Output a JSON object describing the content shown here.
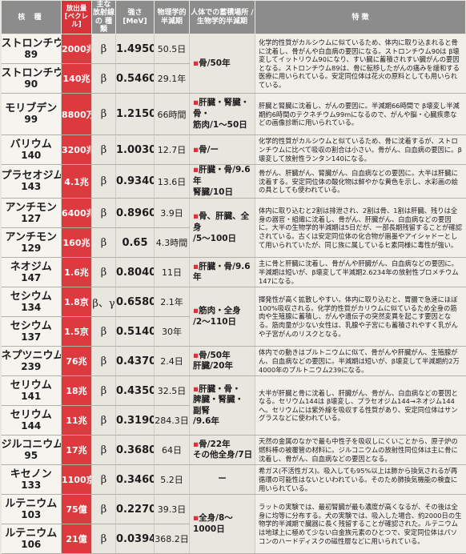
{
  "headers": {
    "nuclide": "核 種",
    "release": "放出量 [ベクレル]",
    "radiation": "主な 放射線の 種類",
    "energy": "強さ [MeV]",
    "half_life": "物理学的 半減期",
    "organ": "人体での蓄積場所 /生物学的半減期",
    "features": "特 徴"
  },
  "rows": [
    {
      "name": "ストロンチウム",
      "mass": "89",
      "release": "2000兆",
      "radiation": "β",
      "energy": "1.4950",
      "half_life": "50.5日"
    },
    {
      "name": "ストロンチウム",
      "mass": "90",
      "release": "140兆",
      "radiation": "β",
      "energy": "0.5460",
      "half_life": "29.1年"
    },
    {
      "name": "モリブデン",
      "mass": "99",
      "release": "8800万",
      "radiation": "β",
      "energy": "1.2150",
      "half_life": "66時間"
    },
    {
      "name": "バリウム",
      "mass": "140",
      "release": "3200兆",
      "radiation": "β",
      "energy": "1.0030",
      "half_life": "12.7日"
    },
    {
      "name": "プラセオジム",
      "mass": "143",
      "release": "4.1兆",
      "radiation": "β",
      "energy": "0.9340",
      "half_life": "13.6日"
    },
    {
      "name": "アンチモン",
      "mass": "127",
      "release": "6400兆",
      "radiation": "β",
      "energy": "0.8960",
      "half_life": "3.9日"
    },
    {
      "name": "アンチモン",
      "mass": "129",
      "release": "160兆",
      "radiation": "β",
      "energy": "0.65",
      "half_life": "4.3時間"
    },
    {
      "name": "ネオジム",
      "mass": "147",
      "release": "1.6兆",
      "radiation": "β",
      "energy": "0.8040",
      "half_life": "11日"
    },
    {
      "name": "セシウム",
      "mass": "134",
      "release": "1.8京",
      "radiation": "β、γ",
      "energy": "0.6580",
      "half_life": "2.1年"
    },
    {
      "name": "セシウム",
      "mass": "137",
      "release": "1.5京",
      "radiation": "β",
      "energy": "0.5140",
      "half_life": "30年"
    },
    {
      "name": "ネプツニウム",
      "mass": "239",
      "release": "76兆",
      "radiation": "β",
      "energy": "0.4370",
      "half_life": "2.4日"
    },
    {
      "name": "セリウム",
      "mass": "141",
      "release": "18兆",
      "radiation": "β",
      "energy": "0.4350",
      "half_life": "32.5日"
    },
    {
      "name": "セリウム",
      "mass": "144",
      "release": "11兆",
      "radiation": "β",
      "energy": "0.3190",
      "half_life": "284.3日"
    },
    {
      "name": "ジルコニウム",
      "mass": "95",
      "release": "17兆",
      "radiation": "β",
      "energy": "0.3680",
      "half_life": "64日"
    },
    {
      "name": "キセノン",
      "mass": "133",
      "release": "1100京",
      "radiation": "β",
      "energy": "0.3460",
      "half_life": "5.2日"
    },
    {
      "name": "ルテニウム",
      "mass": "103",
      "release": "75億",
      "radiation": "β",
      "energy": "0.2270",
      "half_life": "39.3日"
    },
    {
      "name": "ルテニウム",
      "mass": "106",
      "release": "21億",
      "radiation": "β",
      "energy": "0.0394",
      "half_life": "368.2日"
    }
  ],
  "groups": [
    {
      "organ": [
        "骨/50年"
      ],
      "features": "化学的性質がカルシウムに似ているため、体内に取り込まれると骨に沈着し、骨がんや白血病の要因になる。ストロンチウム90は β壊変してイットリウム90になり、すい臓に蓄積されすい臓がんの要因となる。ストロンチウム89は、骨に転移したがんの痛みを緩和する医療に用いられている。安定同位体は花火の原料としても用いられている。"
    },
    {
      "organ": [
        "肝臓・腎臓・骨・",
        "筋肉/1〜50日"
      ],
      "features": "肝臓と腎臓に沈着し、がんの要因に。半減期66時間で β壊変し半減期約6時間のテクネチウム99mになるので、がんや脳・心臓疾患などの画像診断に用いられている。"
    },
    {
      "organ": [
        "骨/ー"
      ],
      "features": "化学的性質がカルシウムと似ているため、骨に沈着するが、ストロンチウムに比べて吸収の割合は小さい。骨がん、白血病の要因に。β壊変して放射性ランタン140になる。"
    },
    {
      "organ": [
        "肝臓・骨/9.6年",
        "腎臓/10日"
      ],
      "features": "骨がん、肝臓がん、腎臓がん、白血病などの要因に。大半は肝臓に沈着する。安定同位体の酸化物は鮮やかな黄色を示し、水彩画の絵の具としても使われている。"
    },
    {
      "organ": [
        "骨、肝臓、全身",
        "/5〜100日"
      ],
      "features": "体内に取り込むと2割は排泄され、2割は骨、1割は肝臓、残りは全身の器官・組織に沈着し、骨がん、肝臓がん、白血病などの要因に。大半の生物学的半減期は5日だが、一部長期残留することが確認されている。古くは安定同位体の化合物が眉墨やアイシャドーとして用いられていたが、同じ族に属しているヒ素同様に毒性が強い。"
    },
    {
      "organ": [
        "肝臓・骨/9.6年"
      ],
      "features": "主に骨と肝臓に沈着し、骨がんや肝臓がん、白血病などの要因に。半減期は短いが、β壊変して半減期2.6234年の放射性プロメチウム147になる。"
    },
    {
      "organ": [
        "筋肉・全身",
        "/2〜110日"
      ],
      "features": "揮発性が高く拡散しやすい。体内に取り込むと、胃腸で急速にほぼ100%吸収される。化学的性質がカリウムに似ているため全身の筋肉や生殖腺に蓄積し、がんや遺伝子の突然変異を起こす要因となる。筋肉量が少ない女性は、乳腺や子宮にも蓄積されやすく乳がんや子宮がんのリスクとなる。"
    },
    {
      "organ": [
        "骨/50年",
        "肝臓/20年"
      ],
      "features": "体内での動きはプルトニウムに似て、骨がんや肝臓がん、生殖腺がん、白血病などの要因に。半減期は短いが、β壊変して半減期約2万4000年のプルトニウム239になる。"
    },
    {
      "organ": [
        "肝臓・骨・",
        "脾臓・腎臓・",
        "副腎",
        "/9.6年"
      ],
      "features": "大半が肝臓と骨に沈着し、肝臓がん、骨がん、白血病などの要因となる。セリウム144は β壊変し、プラセオジム144→ネオジム144へ。セリウムには紫外線を吸収する性質があり、安定同位体はサングラスなどに使われている。"
    },
    {
      "organ": [
        "骨/22年",
        "その他全身/7日"
      ],
      "features": "天然の金属のなかで最も中性子を吸収しにくいことから、原子炉の燃料棒の被覆管の材料に。ジルコニウムの放射性同位体は主に骨に沈着し、骨がん、白血病などの要因となる。"
    },
    {
      "organ": [
        "ー"
      ],
      "features": "希ガス(不活性ガス)。吸入しても95%以上は肺から換気されるが再循環の可能性はないといわれている。そのため肺換気機能の検査に用いられている。"
    },
    {
      "organ": [
        "全身/8〜1000日"
      ],
      "features": "ラットの実験では、最初腎臓が最も濃度が高くなるが、その後は全身に均等に分布する。犬の実験では、吸入した場合、約2000日の生物学的半減期で臓器に長く残留することが確認された。ルテニウムは地球上に極めて少ない白金族元素のひとつで、安定同位体はパソコンのハードディスクの磁性層などに用いられている。"
    }
  ]
}
